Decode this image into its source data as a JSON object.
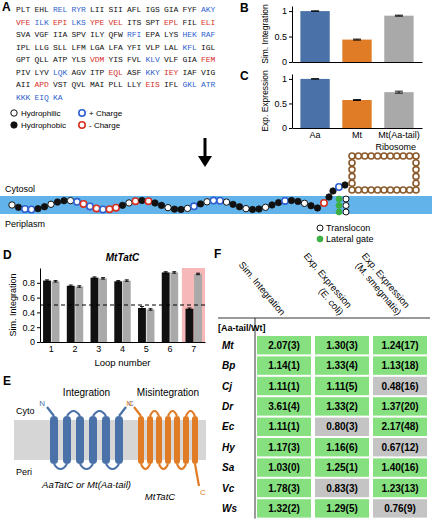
{
  "panel_labels": [
    "A",
    "B",
    "C",
    "D",
    "E",
    "F"
  ],
  "panel_a": {
    "sequence": [
      {
        "groups": [
          "PLT",
          "EHL",
          "REL",
          "RYR",
          "LII",
          "SII",
          "AFL",
          "IGS",
          "GIA",
          "FYF",
          "AKY"
        ],
        "colors": [
          "#111111",
          "#111111",
          "#2f5fd0",
          "#2f5fd0",
          "#111111",
          "#111111",
          "#111111",
          "#111111",
          "#111111",
          "#111111",
          "#2f5fd0"
        ]
      },
      {
        "groups": [
          "VFE",
          "ILK",
          "EPI",
          "LKS",
          "YPE",
          "VEL",
          "ITS",
          "SPT",
          "EPL",
          "FIL",
          "ELI"
        ],
        "colors": [
          "#d7301f",
          "#2f5fd0",
          "#d7301f",
          "#2f5fd0",
          "#d7301f",
          "#d7301f",
          "#111111",
          "#111111",
          "#d7301f",
          "#111111",
          "#d7301f"
        ]
      },
      {
        "groups": [
          "SVA",
          "VGF",
          "IIA",
          "SPV",
          "ILY",
          "QFW",
          "RFI",
          "EPA",
          "LYS",
          "HEK",
          "RAF"
        ],
        "colors": [
          "#111111",
          "#111111",
          "#111111",
          "#111111",
          "#111111",
          "#111111",
          "#2f5fd0",
          "#111111",
          "#111111",
          "#2f5fd0",
          "#2f5fd0"
        ]
      },
      {
        "groups": [
          "IPL",
          "LLG",
          "SLL",
          "LFM",
          "LGA",
          "LFA",
          "YFI",
          "VLP",
          "LAL",
          "KFL",
          "IGL"
        ],
        "colors": [
          "#111111",
          "#111111",
          "#111111",
          "#111111",
          "#111111",
          "#111111",
          "#111111",
          "#111111",
          "#111111",
          "#2f5fd0",
          "#111111"
        ]
      },
      {
        "groups": [
          "GPT",
          "QLL",
          "ATP",
          "YLS",
          "VDM",
          "YIS",
          "FVL",
          "KLV",
          "VLF",
          "GIA",
          "FEM"
        ],
        "colors": [
          "#111111",
          "#111111",
          "#111111",
          "#111111",
          "#d7301f",
          "#111111",
          "#111111",
          "#2f5fd0",
          "#111111",
          "#111111",
          "#d7301f"
        ]
      },
      {
        "groups": [
          "PIV",
          "LYV",
          "LQK",
          "AGV",
          "ITP",
          "EQL",
          "ASF",
          "KKY",
          "IEY",
          "IAF",
          "VIG"
        ],
        "colors": [
          "#111111",
          "#111111",
          "#2f5fd0",
          "#111111",
          "#111111",
          "#d7301f",
          "#111111",
          "#2f5fd0",
          "#d7301f",
          "#111111",
          "#111111"
        ]
      },
      {
        "groups": [
          "AII",
          "APD",
          "VST",
          "QVL",
          "MAI",
          "PLL",
          "LLY",
          "EIS",
          "IFL",
          "GKL",
          "ATR"
        ],
        "colors": [
          "#111111",
          "#d7301f",
          "#111111",
          "#111111",
          "#111111",
          "#111111",
          "#111111",
          "#d7301f",
          "#111111",
          "#2f5fd0",
          "#2f5fd0"
        ]
      },
      {
        "groups": [
          "KKK",
          "EIQ",
          "KA"
        ],
        "colors": [
          "#2f5fd0",
          "#2f5fd0",
          "#2f5fd0"
        ]
      }
    ],
    "legend": [
      {
        "label": "Hydrophilic",
        "marker": "ring",
        "color": "#111111"
      },
      {
        "label": "Hydrophobic",
        "marker": "dot",
        "color": "#111111"
      },
      {
        "label": "+ Charge",
        "marker": "ring",
        "color": "#2f5fd0"
      },
      {
        "label": "- Charge",
        "marker": "ring",
        "color": "#d7301f"
      }
    ],
    "cytosol": "Cytosol",
    "periplasm": "Periplasm",
    "ribosome": {
      "label": "Ribosome",
      "color": "#8b5a2b"
    },
    "translocon_legend": [
      {
        "label": "Translocon",
        "marker": "ring",
        "color": "#111111"
      },
      {
        "label": "Lateral gate",
        "marker": "dot",
        "color": "#3cb043"
      }
    ]
  },
  "chart_data": [
    {
      "type": "bar",
      "ylabel": "Sim. Integration",
      "categories": [
        "Aa",
        "Mt",
        "Mt(Aa-tail)"
      ],
      "values": [
        1.0,
        0.44,
        0.91
      ],
      "errors": [
        0.005,
        0.01,
        0.01
      ],
      "colors": [
        "#4a72a8",
        "#e07b26",
        "#a9a9a9"
      ],
      "ylim": [
        0,
        1.1
      ],
      "yticks": [
        0,
        0.5,
        1
      ],
      "tick_labels": "y"
    },
    {
      "type": "bar",
      "ylabel": "Exp. Expression",
      "categories": [
        "Aa",
        "Mt",
        "Mt(Aa-tail)"
      ],
      "values": [
        1.0,
        0.57,
        0.73
      ],
      "errors": [
        0.005,
        0.01,
        0.02
      ],
      "colors": [
        "#4a72a8",
        "#e07b26",
        "#a9a9a9"
      ],
      "ylim": [
        0,
        1.1
      ],
      "yticks": [
        0,
        0.5,
        1
      ]
    },
    {
      "type": "bar",
      "title": "MtTatC",
      "xlabel": "Loop number",
      "ylabel": "Sim. Integration",
      "categories": [
        "1",
        "2",
        "3",
        "4",
        "5",
        "6",
        "7"
      ],
      "series": [
        {
          "color": "#111111",
          "values": [
            0.83,
            0.76,
            0.87,
            0.82,
            0.46,
            0.94,
            0.45
          ],
          "errors": [
            0.01,
            0.01,
            0.01,
            0.01,
            0.02,
            0.01,
            0.01
          ]
        },
        {
          "color": "#a9a9a9",
          "values": [
            0.82,
            0.75,
            0.86,
            0.83,
            0.44,
            0.94,
            0.92
          ],
          "errors": [
            0.01,
            0.01,
            0.01,
            0.01,
            0.01,
            0.01,
            0.01
          ]
        }
      ],
      "hline": 0.5,
      "highlight": "7",
      "ylim": [
        0,
        1.0
      ],
      "yticks": [
        0,
        0.2,
        0.4,
        0.6,
        0.8
      ]
    }
  ],
  "panel_e": {
    "cyto": "Cyto",
    "peri": "Peri",
    "integration": {
      "title": "Integration",
      "label": "AaTatC or Mt(Aa-tail)",
      "color": "#4a72a8",
      "n": "N",
      "c": "C"
    },
    "misintegration": {
      "title": "Misintegration",
      "label": "MtTatC",
      "color": "#e07b26",
      "n": "N",
      "c": "C"
    }
  },
  "panel_f": {
    "columns": [
      "Sim. Integration",
      "Exp. Expression (E. coli)",
      "Exp. Expression (M. smegmatis)"
    ],
    "row_header": "[Aa-tail/Wt]",
    "cell_colors": {
      "up": "#86e07f",
      "down": "#c4c4c4"
    },
    "rows": [
      {
        "label": "Mt",
        "cells": [
          "2.07(3)",
          "1.30(3)",
          "1.24(17)"
        ]
      },
      {
        "label": "Bp",
        "cells": [
          "1.14(1)",
          "1.33(4)",
          "1.13(18)"
        ]
      },
      {
        "label": "Cj",
        "cells": [
          "1.11(1)",
          "1.11(5)",
          "0.48(16)"
        ]
      },
      {
        "label": "Dr",
        "cells": [
          "3.61(4)",
          "1.33(2)",
          "1.37(20)"
        ]
      },
      {
        "label": "Ec",
        "cells": [
          "1.11(1)",
          "0.80(3)",
          "2.17(48)"
        ]
      },
      {
        "label": "Hy",
        "cells": [
          "1.17(3)",
          "1.16(6)",
          "0.67(12)"
        ]
      },
      {
        "label": "Sa",
        "cells": [
          "1.03(0)",
          "1.25(1)",
          "1.40(16)"
        ]
      },
      {
        "label": "Vc",
        "cells": [
          "1.78(3)",
          "0.83(3)",
          "1.23(13)"
        ]
      },
      {
        "label": "Ws",
        "cells": [
          "1.32(2)",
          "1.29(5)",
          "0.76(9)"
        ]
      }
    ]
  }
}
